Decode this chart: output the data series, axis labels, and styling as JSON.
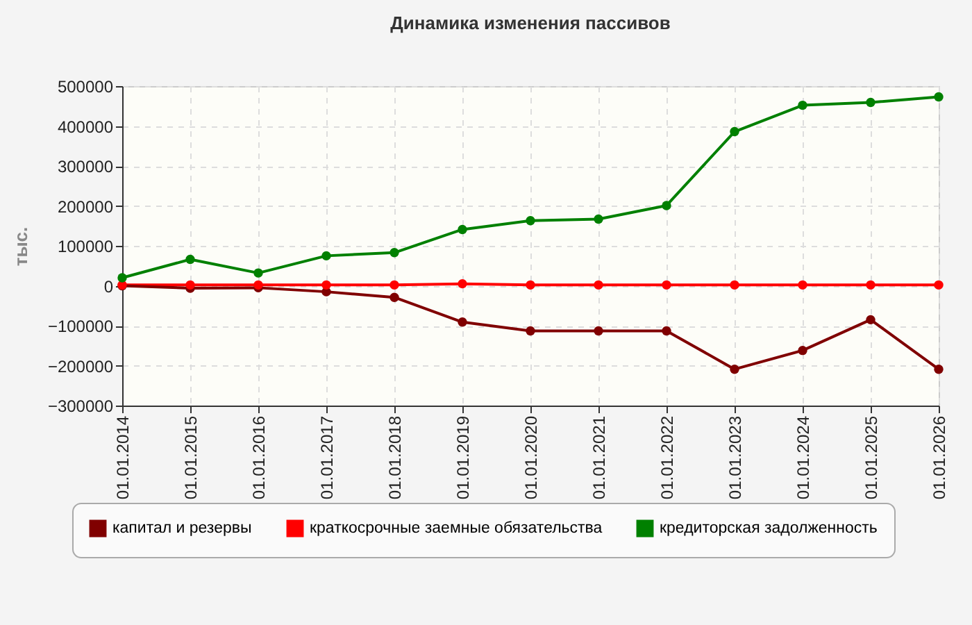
{
  "chart_data": {
    "type": "line",
    "title": "Динамика изменения пассивов",
    "ylabel": "тыс.",
    "categories": [
      "01.01.2014",
      "01.01.2015",
      "01.01.2016",
      "01.01.2017",
      "01.01.2018",
      "01.01.2019",
      "01.01.2020",
      "01.01.2021",
      "01.01.2022",
      "01.01.2023",
      "01.01.2024",
      "01.01.2025",
      "01.01.2026"
    ],
    "series": [
      {
        "name": "капитал и резервы",
        "color": "#800000",
        "values": [
          0,
          -6000,
          -5000,
          -15000,
          -29000,
          -91000,
          -113000,
          -113000,
          -113000,
          -209000,
          -162000,
          -85000,
          -209000
        ]
      },
      {
        "name": "краткосрочные заемные обязательства",
        "color": "#ff0000",
        "values": [
          2000,
          2000,
          2000,
          2000,
          2000,
          5000,
          2000,
          2000,
          2000,
          2000,
          2000,
          2000,
          2000
        ]
      },
      {
        "name": "кредиторская задолженность",
        "color": "#008000",
        "values": [
          20000,
          66000,
          32000,
          75000,
          83000,
          141000,
          163000,
          167000,
          201000,
          386000,
          452000,
          459000,
          473000
        ]
      }
    ],
    "ylim": [
      -300000,
      500000
    ],
    "yticks": [
      -300000,
      -200000,
      -100000,
      0,
      100000,
      200000,
      300000,
      400000,
      500000
    ],
    "grid": true,
    "legend": "bottom",
    "marker": "circle",
    "line_style": "solid"
  }
}
